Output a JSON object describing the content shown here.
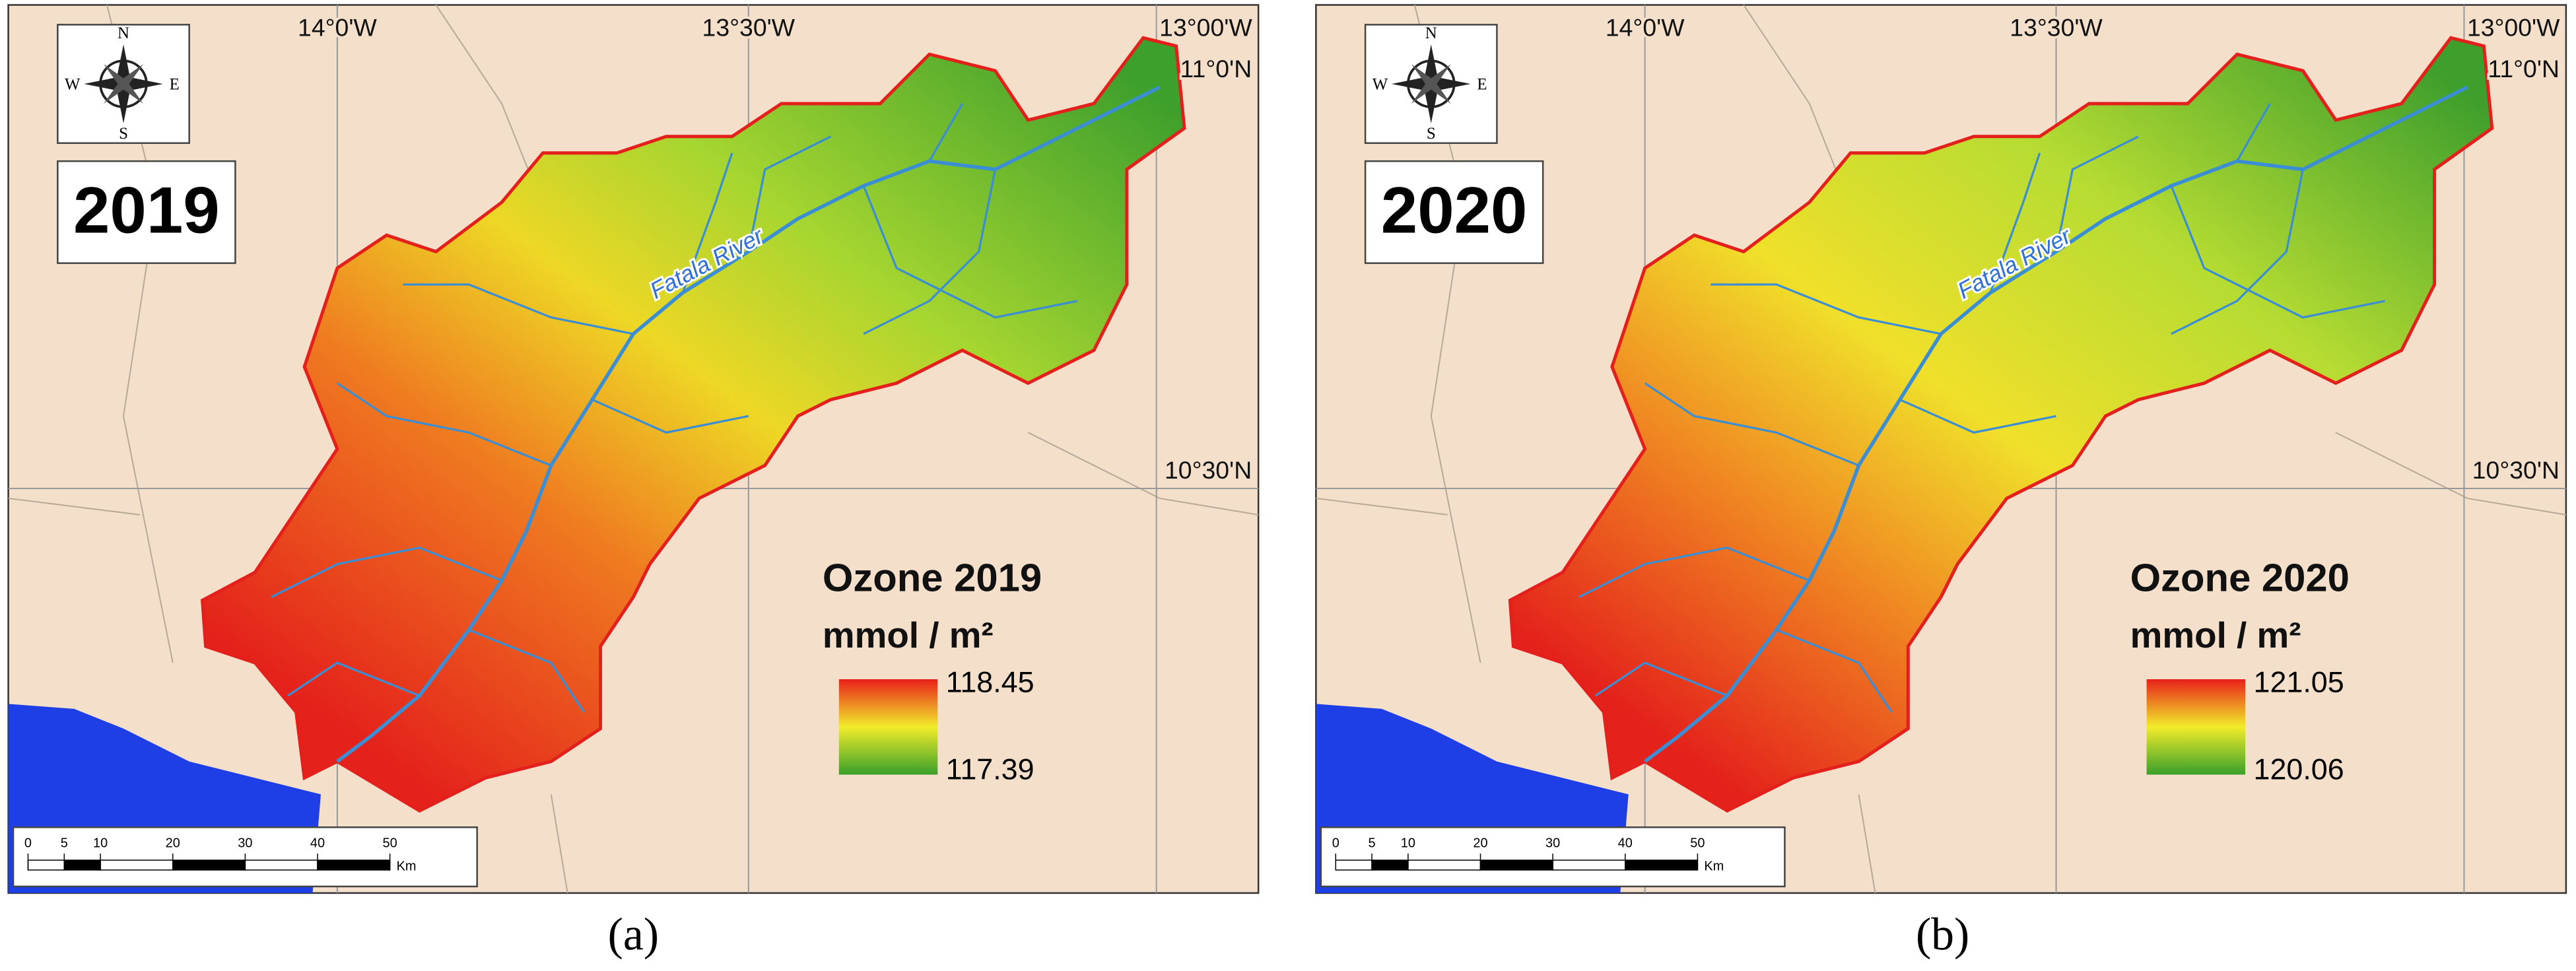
{
  "panels": [
    {
      "year": "2019",
      "legend": {
        "title": "Ozone 2019",
        "unit": "mmol / m²",
        "max": 118.45,
        "min": 117.39
      },
      "river_label": "Fatala River",
      "caption": "(a)"
    },
    {
      "year": "2020",
      "legend": {
        "title": "Ozone 2020",
        "unit": "mmol / m²",
        "max": 121.05,
        "min": 120.06
      },
      "river_label": "Fatala River",
      "caption": "(b)"
    }
  ],
  "coordinates": {
    "lon": [
      "14°0'W",
      "13°30'W",
      "13°00'W"
    ],
    "lat": [
      "11°0'N",
      "10°30'N"
    ]
  },
  "compass": {
    "n": "N",
    "s": "S",
    "e": "E",
    "w": "W"
  },
  "scale_bar": {
    "ticks": [
      0,
      5,
      10,
      20,
      30,
      40,
      50
    ],
    "unit": "Km"
  }
}
